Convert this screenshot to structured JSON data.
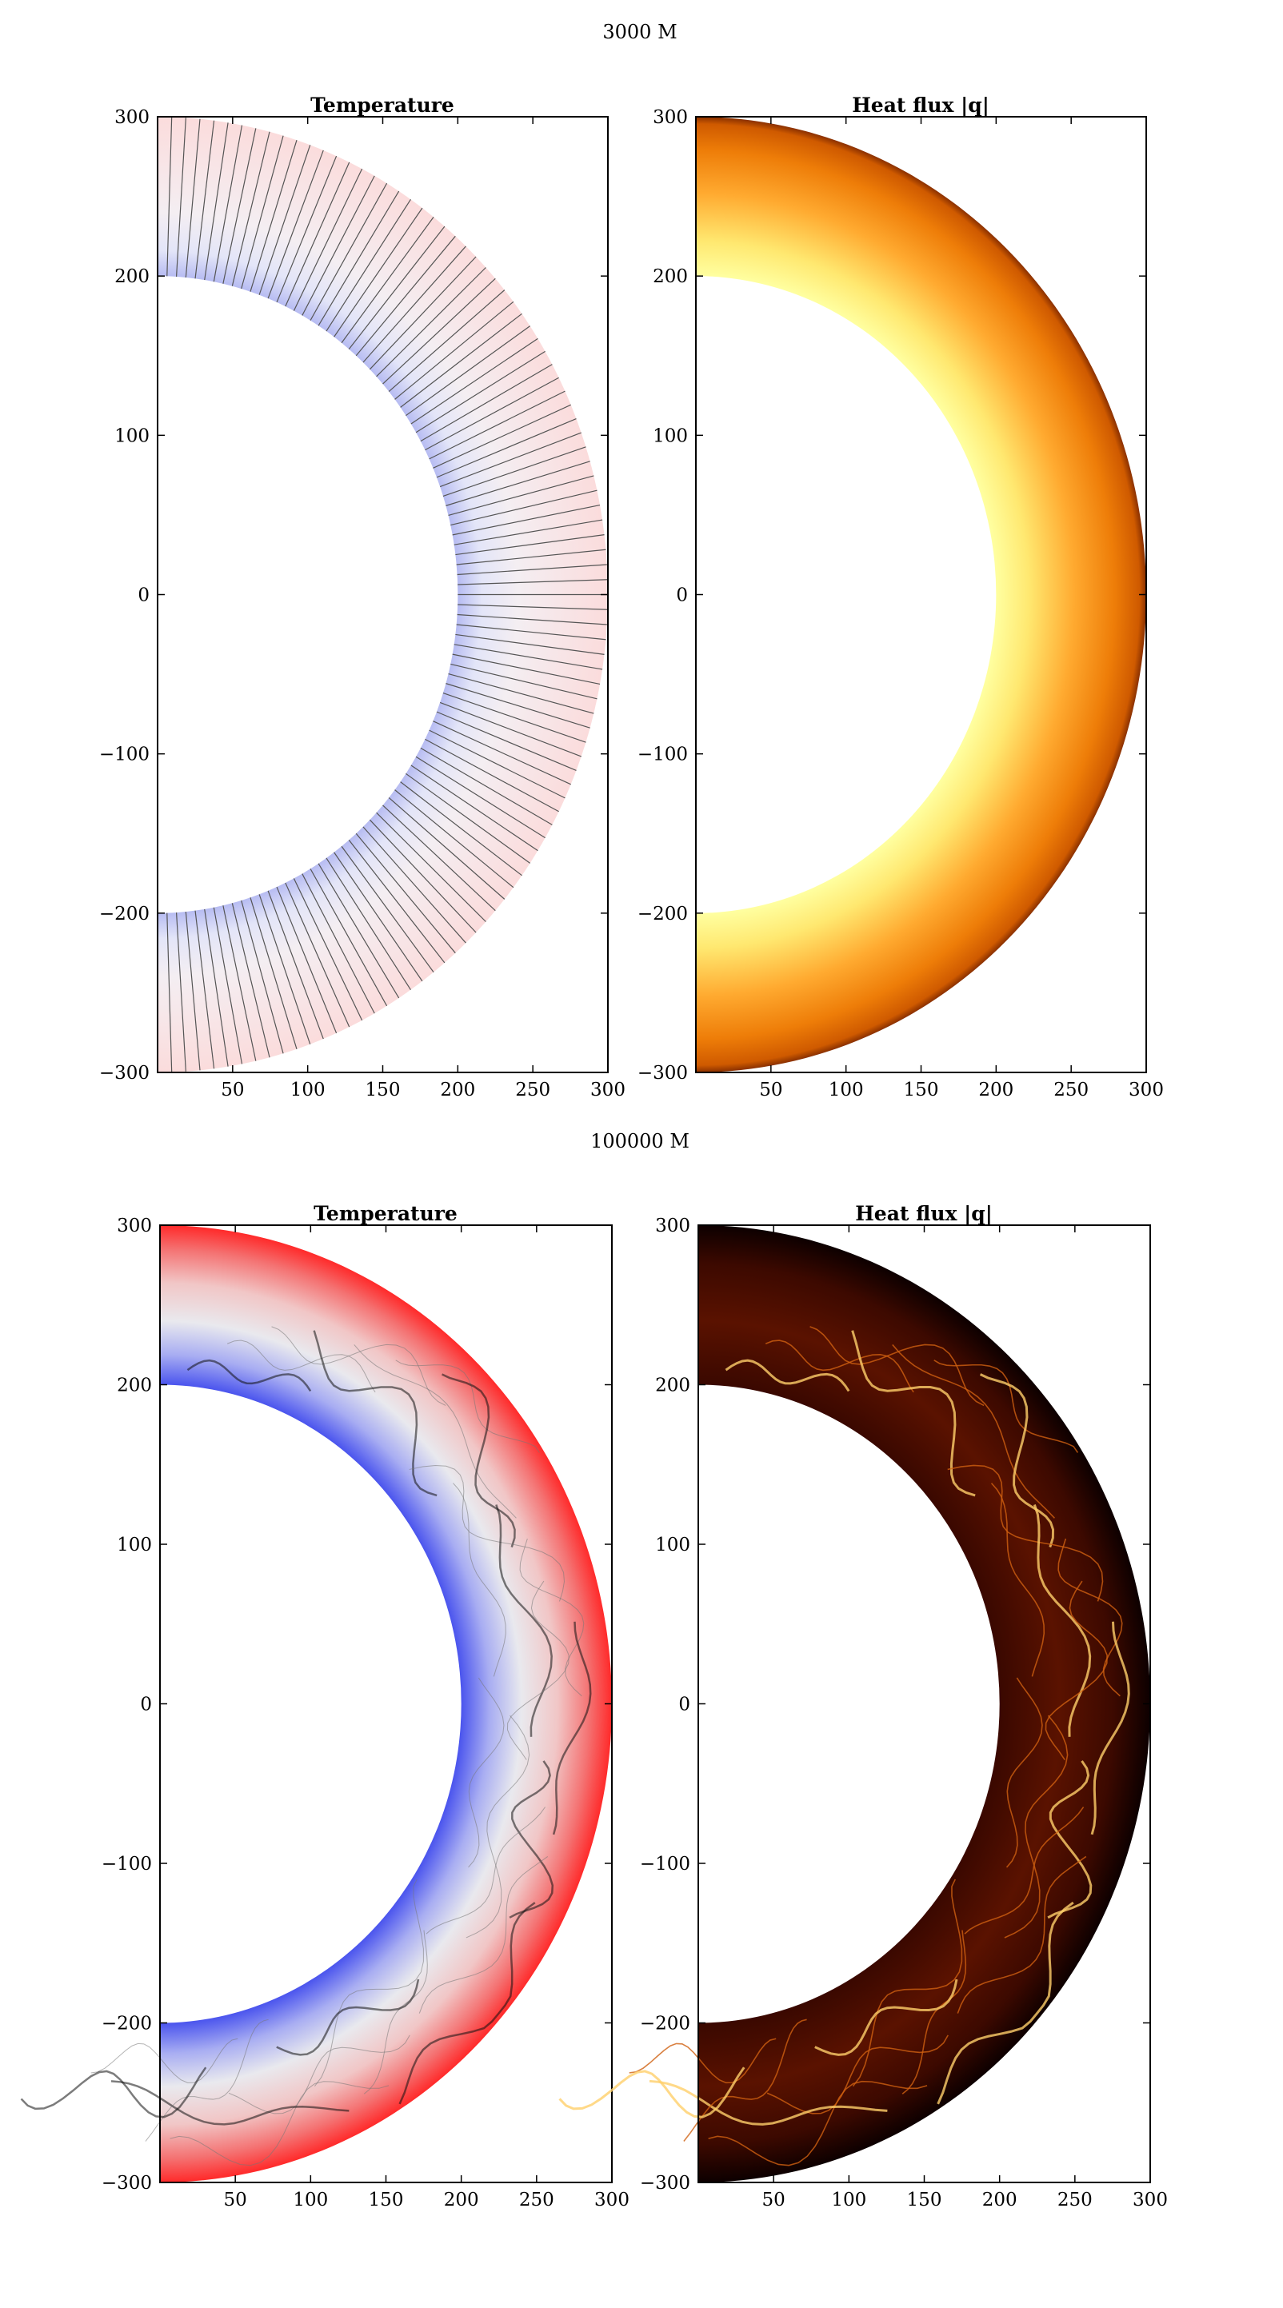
{
  "chart_data": [
    {
      "type": "heatmap",
      "row_title": "3000 M",
      "title": "Temperature",
      "colormap": "bwr",
      "contours": "regular radial contour lines",
      "xlim": [
        0,
        300
      ],
      "ylim": [
        -300,
        300
      ],
      "xticks": [
        50,
        100,
        150,
        200,
        250,
        300
      ],
      "yticks": [
        300,
        200,
        100,
        0,
        -100,
        -200,
        -300
      ],
      "shell_r_inner": 200,
      "shell_r_outer": 300
    },
    {
      "type": "heatmap",
      "row_title": "3000 M",
      "title": "Heat flux |q|",
      "colormap": "afmhot",
      "xlim": [
        0,
        300
      ],
      "ylim": [
        -300,
        300
      ],
      "xticks": [
        50,
        100,
        150,
        200,
        250,
        300
      ],
      "yticks": [
        300,
        200,
        100,
        0,
        -100,
        -200,
        -300
      ],
      "shell_r_inner": 200,
      "shell_r_outer": 300
    },
    {
      "type": "heatmap",
      "row_title": "100000 M",
      "title": "Temperature",
      "colormap": "bwr",
      "contours": "turbulent contour lines",
      "xlim": [
        0,
        300
      ],
      "ylim": [
        -300,
        300
      ],
      "xticks": [
        50,
        100,
        150,
        200,
        250,
        300
      ],
      "yticks": [
        300,
        200,
        100,
        0,
        -100,
        -200,
        -300
      ],
      "shell_r_inner": 200,
      "shell_r_outer": 300
    },
    {
      "type": "heatmap",
      "row_title": "100000 M",
      "title": "Heat flux |q|",
      "colormap": "afmhot",
      "xlim": [
        0,
        300
      ],
      "ylim": [
        -300,
        300
      ],
      "xticks": [
        50,
        100,
        150,
        200,
        250,
        300
      ],
      "yticks": [
        300,
        200,
        100,
        0,
        -100,
        -200,
        -300
      ],
      "shell_r_inner": 200,
      "shell_r_outer": 300
    }
  ]
}
